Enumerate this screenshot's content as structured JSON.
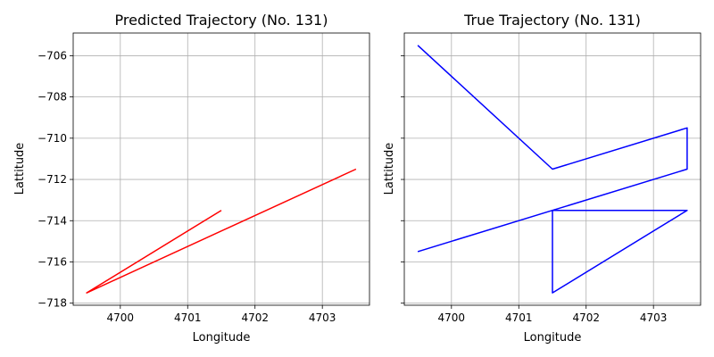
{
  "chart_data": [
    {
      "type": "line",
      "title": "Predicted Trajectory (No. 131)",
      "xlabel": "Longitude",
      "ylabel": "Lattitude",
      "xlim": [
        4699.3,
        4703.7
      ],
      "ylim": [
        -718.1,
        -704.9
      ],
      "xticks": [
        4700,
        4701,
        4702,
        4703
      ],
      "xtick_labels": [
        "4700",
        "4701",
        "4702",
        "4703"
      ],
      "yticks": [
        -706,
        -708,
        -710,
        -712,
        -714,
        -716,
        -718
      ],
      "ytick_labels": [
        "−706",
        "−708",
        "−710",
        "−712",
        "−714",
        "−716",
        "−718"
      ],
      "grid": true,
      "color": "#ff0000",
      "series": [
        {
          "x": [
            4701.5,
            4699.5,
            4703.5
          ],
          "y": [
            -713.5,
            -717.5,
            -711.5
          ]
        }
      ]
    },
    {
      "type": "line",
      "title": "True Trajectory (No. 131)",
      "xlabel": "Longitude",
      "ylabel": "Lattitude",
      "xlim": [
        4699.3,
        4703.7
      ],
      "ylim": [
        -718.1,
        -704.9
      ],
      "xticks": [
        4700,
        4701,
        4702,
        4703
      ],
      "xtick_labels": [
        "4700",
        "4701",
        "4702",
        "4703"
      ],
      "yticks": [
        -706,
        -708,
        -710,
        -712,
        -714,
        -716,
        -718
      ],
      "ytick_labels": [
        "",
        "",
        "",
        "",
        "",
        "",
        ""
      ],
      "grid": true,
      "color": "#0000ff",
      "series": [
        {
          "x": [
            4699.5,
            4701.5,
            4701.5,
            4703.5,
            4703.5,
            4701.5,
            4701.5,
            4703.5,
            4701.5,
            4701.5,
            4699.5
          ],
          "y": [
            -705.5,
            -711.5,
            -711.5,
            -709.5,
            -711.5,
            -713.5,
            -713.5,
            -713.5,
            -717.5,
            -713.5,
            -715.5
          ]
        }
      ]
    }
  ]
}
